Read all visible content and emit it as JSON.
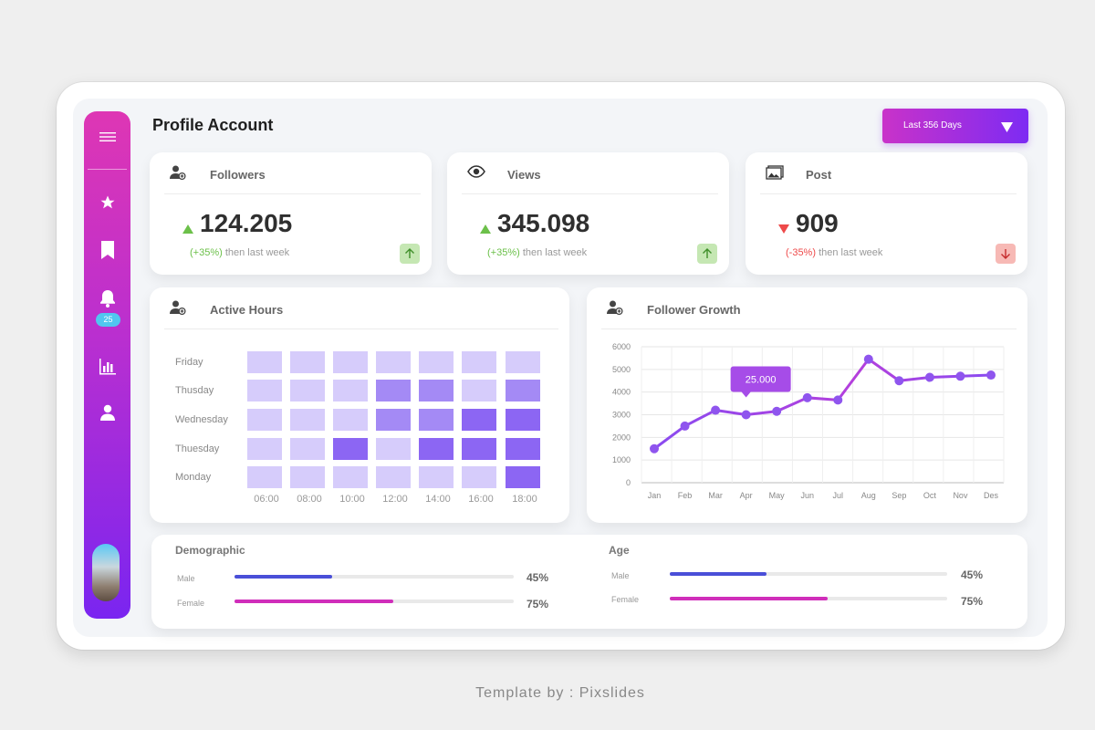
{
  "header": {
    "title": "Profile Account",
    "range_label": "Last 356 Days"
  },
  "sidebar": {
    "items": [
      {
        "icon": "menu-icon"
      },
      {
        "icon": "star-icon"
      },
      {
        "icon": "bookmark-icon"
      },
      {
        "icon": "bell-icon",
        "badge": "25"
      },
      {
        "icon": "bar-chart-icon"
      },
      {
        "icon": "user-icon"
      }
    ],
    "accent_top": "#de36b4",
    "accent_bottom": "#7a25f0"
  },
  "stats": [
    {
      "title": "Followers",
      "icon": "user-add-icon",
      "value": "124.205",
      "change": "(+35%)",
      "note": "then last week",
      "trend": "up"
    },
    {
      "title": "Views",
      "icon": "eye-icon",
      "value": "345.098",
      "change": "(+35%)",
      "note": "then last week",
      "trend": "up"
    },
    {
      "title": "Post",
      "icon": "image-icon",
      "value": "909",
      "change": "(-35%)",
      "note": "then last week",
      "trend": "down"
    }
  ],
  "active_hours": {
    "title": "Active Hours",
    "rows": [
      "Friday",
      "Thusday",
      "Wednesday",
      "Thuesday",
      "Monday"
    ],
    "cols": [
      "06:00",
      "08:00",
      "10:00",
      "12:00",
      "14:00",
      "16:00",
      "18:00"
    ],
    "levels": [
      [
        1,
        1,
        1,
        1,
        1,
        1,
        1
      ],
      [
        1,
        1,
        1,
        2,
        2,
        1,
        2
      ],
      [
        1,
        1,
        1,
        2,
        2,
        3,
        3
      ],
      [
        1,
        1,
        3,
        1,
        3,
        3,
        3
      ],
      [
        1,
        1,
        1,
        1,
        1,
        1,
        3
      ]
    ],
    "colors": [
      "#d6ccfb",
      "#a48af5",
      "#8c66f3"
    ]
  },
  "follower_growth": {
    "title": "Follower Growth",
    "tooltip": "25.000"
  },
  "chart_data": {
    "type": "line",
    "title": "Follower Growth",
    "categories": [
      "Jan",
      "Feb",
      "Mar",
      "Apr",
      "May",
      "Jun",
      "Jul",
      "Aug",
      "Sep",
      "Oct",
      "Nov",
      "Des"
    ],
    "values": [
      1500,
      2500,
      3200,
      3000,
      3150,
      3750,
      3650,
      5450,
      4500,
      4650,
      4700,
      4750
    ],
    "yticks": [
      "0",
      "1000",
      "2000",
      "3000",
      "4000",
      "5000",
      "6000"
    ],
    "ylim": [
      0,
      6000
    ],
    "grid": true,
    "color": "#a040e8"
  },
  "demographic": {
    "title": "Demographic",
    "bars": [
      {
        "label": "Male",
        "pct": "45%",
        "fill": 0.35,
        "color": "#4a4fd8"
      },
      {
        "label": "Female",
        "pct": "75%",
        "fill": 0.57,
        "color": "#d02eba"
      }
    ]
  },
  "age": {
    "title": "Age",
    "bars": [
      {
        "label": "Male",
        "pct": "45%",
        "fill": 0.35,
        "color": "#4a4fd8"
      },
      {
        "label": "Female",
        "pct": "75%",
        "fill": 0.57,
        "color": "#d02eba"
      }
    ]
  },
  "footer": "Template by : Pixslides"
}
